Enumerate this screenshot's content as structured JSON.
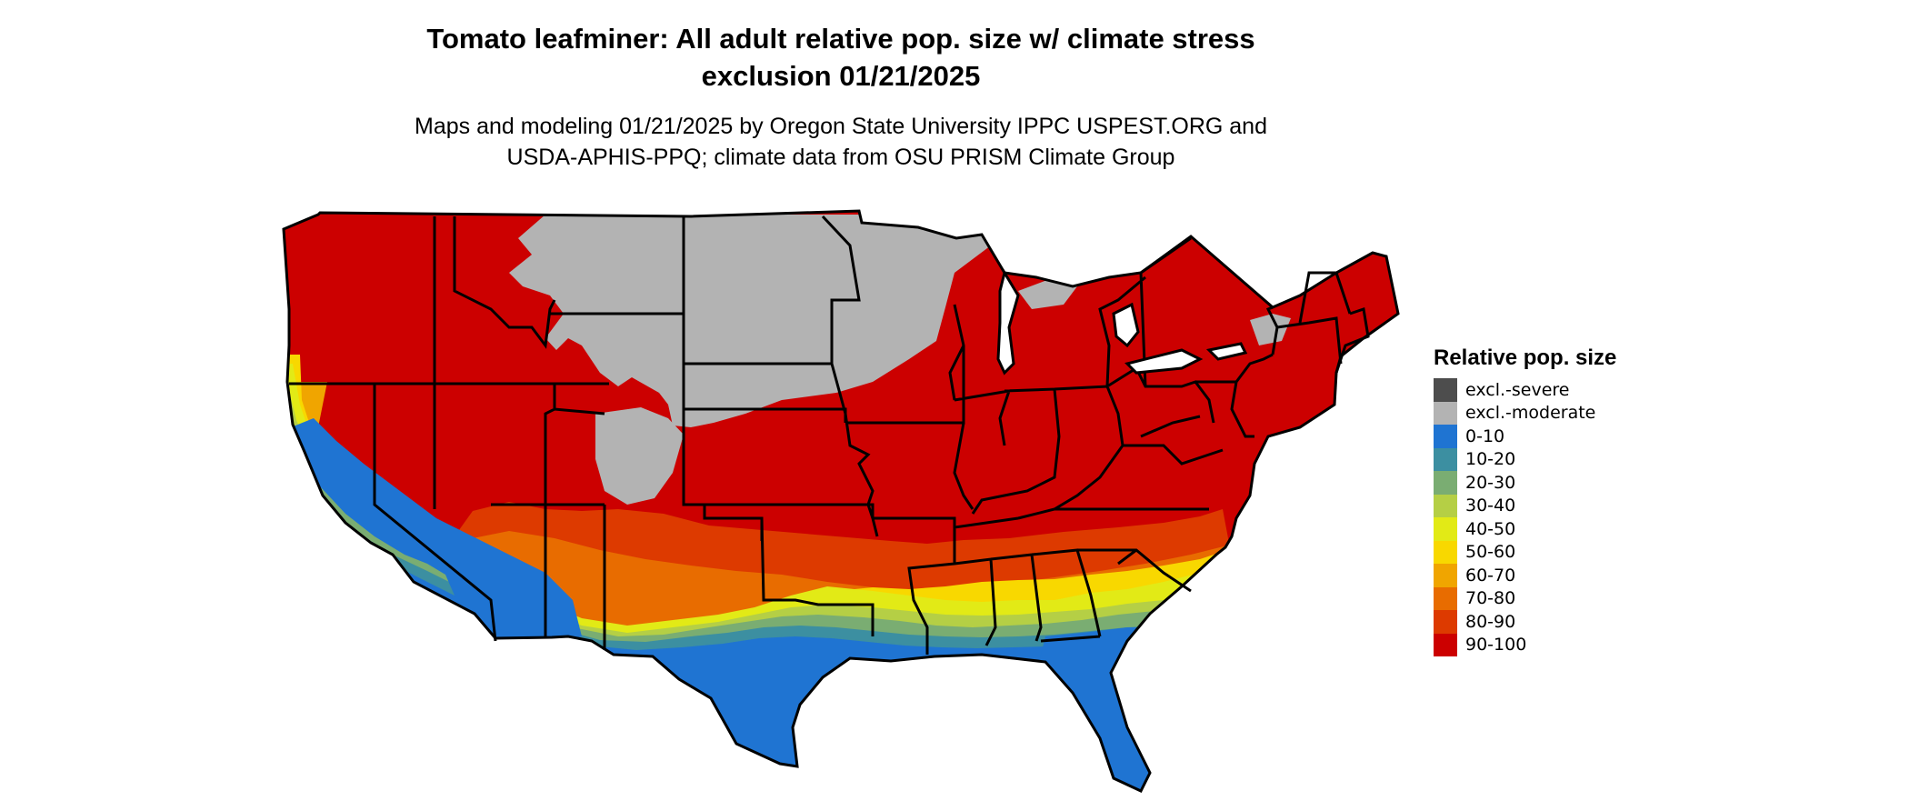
{
  "title": {
    "line1": "Tomato leafminer: All adult relative pop. size w/ climate stress",
    "line2": "exclusion 01/21/2025"
  },
  "subtitle": {
    "line1": "Maps and modeling 01/21/2025 by Oregon State University IPPC USPEST.ORG and",
    "line2": "USDA-APHIS-PPQ; climate data from OSU PRISM Climate Group"
  },
  "legend": {
    "title": "Relative pop. size",
    "items": [
      {
        "label": "excl.-severe",
        "color": "#4d4d4d"
      },
      {
        "label": "excl.-moderate",
        "color": "#b3b3b3"
      },
      {
        "label": "0-10",
        "color": "#1f74d2"
      },
      {
        "label": "10-20",
        "color": "#3c8fa1"
      },
      {
        "label": "20-30",
        "color": "#7aad72"
      },
      {
        "label": "30-40",
        "color": "#b5cf45"
      },
      {
        "label": "40-50",
        "color": "#e2ea16"
      },
      {
        "label": "50-60",
        "color": "#f8d800"
      },
      {
        "label": "60-70",
        "color": "#f0a500"
      },
      {
        "label": "70-80",
        "color": "#e86c00"
      },
      {
        "label": "80-90",
        "color": "#dd3a00"
      },
      {
        "label": "90-100",
        "color": "#cc0000"
      }
    ]
  },
  "map": {
    "region": "Contiguous United States",
    "border_color": "#000000"
  }
}
